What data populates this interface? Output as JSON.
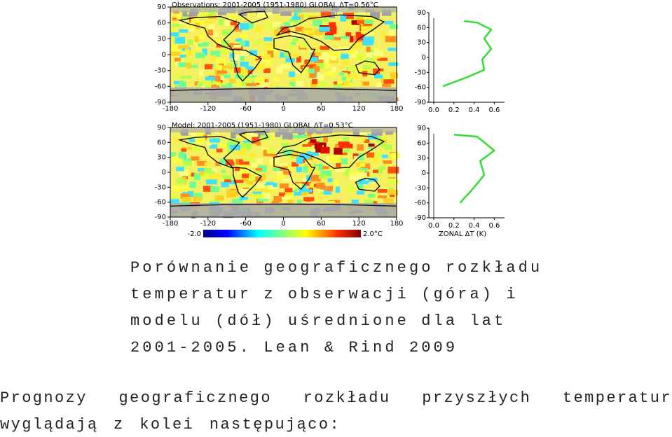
{
  "figure": {
    "panels": [
      {
        "title": "Observations: 2001-2005 (1951-1980) GLOBAL ΔT=0.56°C",
        "zonal_lat": [
          -58,
          -39,
          -25,
          -4,
          17,
          38,
          56,
          70,
          73
        ],
        "zonal_dt": [
          0.09,
          0.34,
          0.5,
          0.48,
          0.57,
          0.5,
          0.57,
          0.43,
          0.3
        ]
      },
      {
        "title": "Model: 2001-2005 (1951-1980) GLOBAL ΔT=0.53°C",
        "zonal_lat": [
          -60,
          -36,
          -4,
          24,
          45,
          73,
          77
        ],
        "zonal_dt": [
          0.26,
          0.37,
          0.5,
          0.46,
          0.6,
          0.43,
          0.2
        ]
      }
    ],
    "map_lat_ticks": [
      90,
      60,
      30,
      0,
      -30,
      -60,
      -90
    ],
    "map_lon_ticks": [
      -180,
      -120,
      -60,
      0,
      60,
      120,
      180
    ],
    "zonal_xlim": [
      -0.05,
      0.7
    ],
    "zonal_ylim": [
      -90,
      90
    ],
    "zonal_xticks": [
      {
        "value": 0,
        "label": "0.0"
      },
      {
        "value": 0.2,
        "label": "0.2"
      },
      {
        "value": 0.4,
        "label": "0.4"
      },
      {
        "value": 0.6,
        "label": "0.6"
      }
    ],
    "zonal_yticks": [
      90,
      60,
      30,
      0,
      -30,
      -60,
      -90
    ],
    "zonal_xlabel": "ZONAL ΔT (K)",
    "colorbar_ticks": [
      {
        "value": -2,
        "label": "-2.0"
      },
      {
        "value": 2,
        "label": "2.0°C"
      }
    ],
    "zonal_color": "#33dd33"
  },
  "caption": "Porównanie geograficznego rozkładu temperatur z obserwacji (góra) i modelu (dół) uśrednione dla lat 2001-2005. Lean & Rind 2009",
  "paragraph": "Prognozy geograficznego rozkładu przyszłych temperatur wyglądają z kolei następująco:"
}
